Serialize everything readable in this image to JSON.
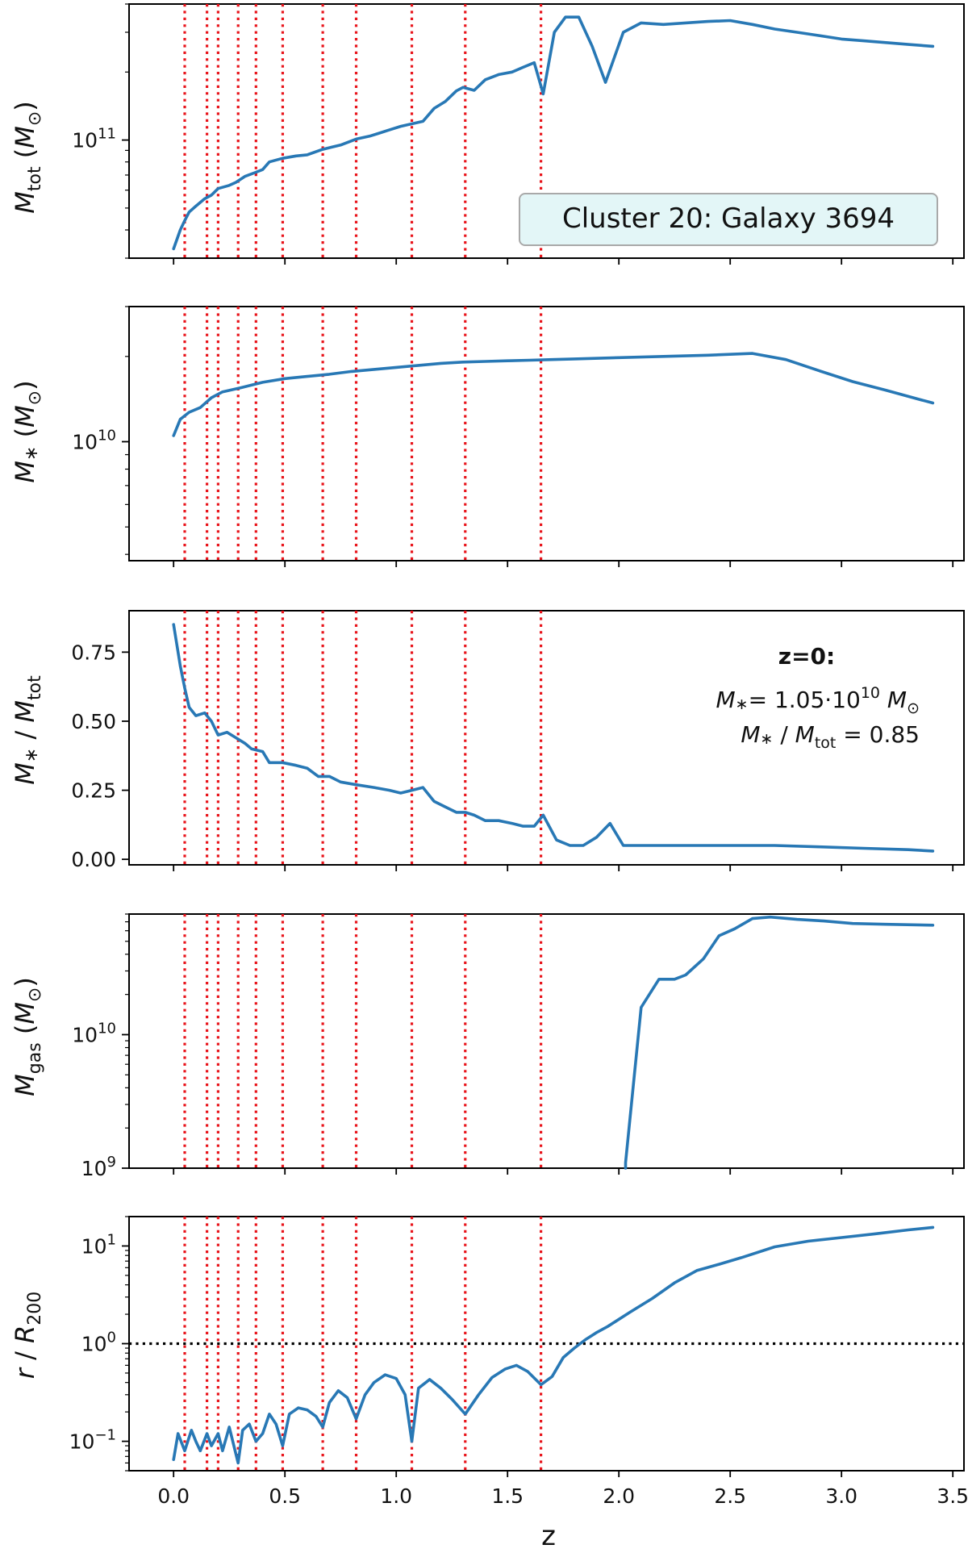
{
  "figure": {
    "xlabel": "z",
    "x_tick_labels": [
      "0.0",
      "0.5",
      "1.0",
      "1.5",
      "2.0",
      "2.5",
      "3.0",
      "3.5"
    ],
    "colors": {
      "series": "#2878b5",
      "vline": "#e8141b",
      "hline": "#000000",
      "legend_bg": "#e3f6f7",
      "legend_border": "#a9a9a9"
    }
  },
  "panels": {
    "mtot": {
      "ylabel": "M_tot (M_⊙)",
      "y_tick_labels": [
        "10",
        "11"
      ],
      "legend_text": "Cluster 20: Galaxy 3694"
    },
    "mstar": {
      "ylabel": "M_* (M_⊙)",
      "y_tick_labels": [
        "10",
        "10"
      ]
    },
    "ratio": {
      "ylabel": "M_* / M_tot",
      "y_tick_labels": [
        "0.00",
        "0.25",
        "0.50",
        "0.75"
      ],
      "annot_title": "z=0:",
      "annot_line1_a": "M",
      "annot_line1_b": "= 1.05·10",
      "annot_line1_exp": "10",
      "annot_line1_c": "M",
      "annot_line2_a": "M",
      "annot_line2_b": "/ M",
      "annot_line2_c": "= 0.85"
    },
    "mgas": {
      "ylabel": "M_gas (M_⊙)",
      "y_tick_labels": [
        "10",
        "10"
      ]
    },
    "radius": {
      "ylabel": "r / R_200",
      "y_tick_labels": [
        "10",
        "10",
        "10"
      ]
    }
  },
  "chart_data": [
    {
      "type": "line",
      "title": "Cluster 20: Galaxy 3694",
      "xlabel": "z",
      "ylabel": "M_tot (M_⊙)",
      "yscale": "log",
      "xlim": [
        -0.2,
        3.55
      ],
      "ylim": [
        30000000000,
        400000000000
      ],
      "x": [
        0.0,
        0.03,
        0.05,
        0.07,
        0.1,
        0.14,
        0.17,
        0.2,
        0.25,
        0.28,
        0.32,
        0.37,
        0.4,
        0.43,
        0.49,
        0.55,
        0.6,
        0.67,
        0.71,
        0.75,
        0.82,
        0.88,
        0.92,
        0.97,
        1.02,
        1.07,
        1.12,
        1.17,
        1.22,
        1.27,
        1.3,
        1.35,
        1.4,
        1.46,
        1.52,
        1.57,
        1.62,
        1.66,
        1.71,
        1.76,
        1.82,
        1.88,
        1.94,
        2.02,
        2.1,
        2.2,
        2.3,
        2.4,
        2.5,
        2.6,
        2.7,
        2.8,
        2.9,
        3.0,
        3.1,
        3.2,
        3.3,
        3.41
      ],
      "y": [
        33000000000,
        40000000000,
        44000000000,
        48000000000,
        51000000000,
        55000000000,
        57000000000,
        61000000000,
        63000000000,
        65000000000,
        69000000000,
        72000000000,
        74000000000,
        80000000000,
        83000000000,
        85000000000,
        86000000000,
        91000000000,
        93000000000,
        95000000000,
        101000000000,
        104000000000,
        107000000000,
        111000000000,
        115000000000,
        118000000000,
        121000000000,
        138000000000,
        148000000000,
        165000000000,
        171000000000,
        166000000000,
        185000000000,
        195000000000,
        200000000000,
        210000000000,
        220000000000,
        160000000000,
        300000000000,
        350000000000,
        350000000000,
        260000000000,
        180000000000,
        300000000000,
        330000000000,
        325000000000,
        330000000000,
        335000000000,
        338000000000,
        325000000000,
        310000000000,
        300000000000,
        290000000000,
        280000000000,
        275000000000,
        270000000000,
        265000000000,
        260000000000
      ],
      "vlines_x": [
        0.05,
        0.15,
        0.2,
        0.29,
        0.37,
        0.49,
        0.67,
        0.82,
        1.07,
        1.31,
        1.65
      ]
    },
    {
      "type": "line",
      "xlabel": "z",
      "ylabel": "M_* (M_⊙)",
      "yscale": "log",
      "xlim": [
        -0.2,
        3.55
      ],
      "ylim": [
        3800000000,
        30000000000
      ],
      "x": [
        0.0,
        0.03,
        0.07,
        0.12,
        0.17,
        0.22,
        0.3,
        0.4,
        0.5,
        0.6,
        0.7,
        0.8,
        0.9,
        1.0,
        1.1,
        1.2,
        1.3,
        1.4,
        1.5,
        1.6,
        1.7,
        1.8,
        2.0,
        2.2,
        2.4,
        2.6,
        2.75,
        2.9,
        3.05,
        3.2,
        3.35,
        3.41
      ],
      "y": [
        10500000000,
        12000000000,
        12700000000,
        13200000000,
        14300000000,
        15000000000,
        15500000000,
        16200000000,
        16700000000,
        17000000000,
        17300000000,
        17700000000,
        18000000000,
        18300000000,
        18600000000,
        18900000000,
        19100000000,
        19200000000,
        19300000000,
        19400000000,
        19500000000,
        19600000000,
        19800000000,
        20000000000,
        20200000000,
        20500000000,
        19500000000,
        17800000000,
        16300000000,
        15200000000,
        14100000000,
        13700000000
      ],
      "vlines_x": [
        0.05,
        0.15,
        0.2,
        0.29,
        0.37,
        0.49,
        0.67,
        0.82,
        1.07,
        1.31,
        1.65
      ]
    },
    {
      "type": "line",
      "xlabel": "z",
      "ylabel": "M_* / M_tot",
      "yscale": "linear",
      "xlim": [
        -0.2,
        3.55
      ],
      "ylim": [
        -0.02,
        0.9
      ],
      "x": [
        0.0,
        0.03,
        0.05,
        0.07,
        0.1,
        0.14,
        0.17,
        0.2,
        0.24,
        0.28,
        0.32,
        0.35,
        0.4,
        0.43,
        0.49,
        0.55,
        0.6,
        0.65,
        0.7,
        0.75,
        0.82,
        0.9,
        0.97,
        1.02,
        1.07,
        1.12,
        1.17,
        1.22,
        1.27,
        1.31,
        1.35,
        1.4,
        1.46,
        1.52,
        1.57,
        1.62,
        1.66,
        1.72,
        1.78,
        1.84,
        1.9,
        1.96,
        2.02,
        2.1,
        2.3,
        2.5,
        2.7,
        2.9,
        3.1,
        3.3,
        3.41
      ],
      "y": [
        0.85,
        0.7,
        0.62,
        0.55,
        0.52,
        0.53,
        0.5,
        0.45,
        0.46,
        0.44,
        0.42,
        0.4,
        0.39,
        0.35,
        0.35,
        0.34,
        0.33,
        0.3,
        0.3,
        0.28,
        0.27,
        0.26,
        0.25,
        0.24,
        0.25,
        0.26,
        0.21,
        0.19,
        0.17,
        0.17,
        0.16,
        0.14,
        0.14,
        0.13,
        0.12,
        0.12,
        0.16,
        0.07,
        0.05,
        0.05,
        0.08,
        0.13,
        0.05,
        0.05,
        0.05,
        0.05,
        0.05,
        0.045,
        0.04,
        0.035,
        0.03
      ],
      "annotation": [
        "z=0:",
        "M_* = 1.05·10^10 M_⊙",
        "M_* / M_tot = 0.85"
      ],
      "vlines_x": [
        0.05,
        0.15,
        0.2,
        0.29,
        0.37,
        0.49,
        0.67,
        0.82,
        1.07,
        1.31,
        1.65
      ]
    },
    {
      "type": "line",
      "xlabel": "z",
      "ylabel": "M_gas (M_⊙)",
      "yscale": "log",
      "xlim": [
        -0.2,
        3.55
      ],
      "ylim": [
        1000000000,
        80000000000
      ],
      "x": [
        2.03,
        2.03,
        2.1,
        2.18,
        2.25,
        2.3,
        2.38,
        2.45,
        2.52,
        2.6,
        2.68,
        2.8,
        2.92,
        3.05,
        3.2,
        3.41
      ],
      "y": [
        1000000000,
        1100000000,
        16000000000,
        26000000000,
        26000000000,
        28000000000,
        37000000000,
        55000000000,
        62000000000,
        74000000000,
        76000000000,
        73000000000,
        71000000000,
        68000000000,
        67000000000,
        66000000000
      ],
      "vlines_x": [
        0.05,
        0.15,
        0.2,
        0.29,
        0.37,
        0.49,
        0.67,
        0.82,
        1.07,
        1.31,
        1.65
      ]
    },
    {
      "type": "line",
      "xlabel": "z",
      "ylabel": "r / R_200",
      "yscale": "log",
      "xlim": [
        -0.2,
        3.55
      ],
      "ylim": [
        0.05,
        20
      ],
      "x": [
        0.0,
        0.02,
        0.05,
        0.08,
        0.1,
        0.12,
        0.15,
        0.17,
        0.2,
        0.22,
        0.25,
        0.29,
        0.31,
        0.34,
        0.37,
        0.4,
        0.43,
        0.46,
        0.49,
        0.52,
        0.56,
        0.6,
        0.64,
        0.67,
        0.7,
        0.74,
        0.78,
        0.82,
        0.86,
        0.9,
        0.95,
        1.0,
        1.04,
        1.07,
        1.1,
        1.15,
        1.2,
        1.25,
        1.31,
        1.37,
        1.43,
        1.49,
        1.54,
        1.59,
        1.65,
        1.7,
        1.75,
        1.8,
        1.85,
        1.9,
        1.95,
        2.05,
        2.15,
        2.25,
        2.35,
        2.45,
        2.55,
        2.7,
        2.85,
        3.0,
        3.15,
        3.3,
        3.41
      ],
      "y": [
        0.065,
        0.12,
        0.08,
        0.13,
        0.1,
        0.08,
        0.12,
        0.09,
        0.12,
        0.08,
        0.14,
        0.06,
        0.13,
        0.15,
        0.1,
        0.12,
        0.19,
        0.15,
        0.09,
        0.19,
        0.22,
        0.21,
        0.18,
        0.14,
        0.25,
        0.33,
        0.28,
        0.17,
        0.3,
        0.4,
        0.48,
        0.44,
        0.3,
        0.1,
        0.35,
        0.43,
        0.35,
        0.27,
        0.19,
        0.3,
        0.45,
        0.55,
        0.6,
        0.52,
        0.38,
        0.46,
        0.72,
        0.9,
        1.1,
        1.3,
        1.5,
        2.1,
        2.9,
        4.2,
        5.6,
        6.5,
        7.6,
        9.8,
        11.2,
        12.2,
        13.3,
        14.6,
        15.5
      ],
      "hline_y": 1.0,
      "vlines_x": [
        0.05,
        0.15,
        0.2,
        0.29,
        0.37,
        0.49,
        0.67,
        0.82,
        1.07,
        1.31,
        1.65
      ]
    }
  ]
}
